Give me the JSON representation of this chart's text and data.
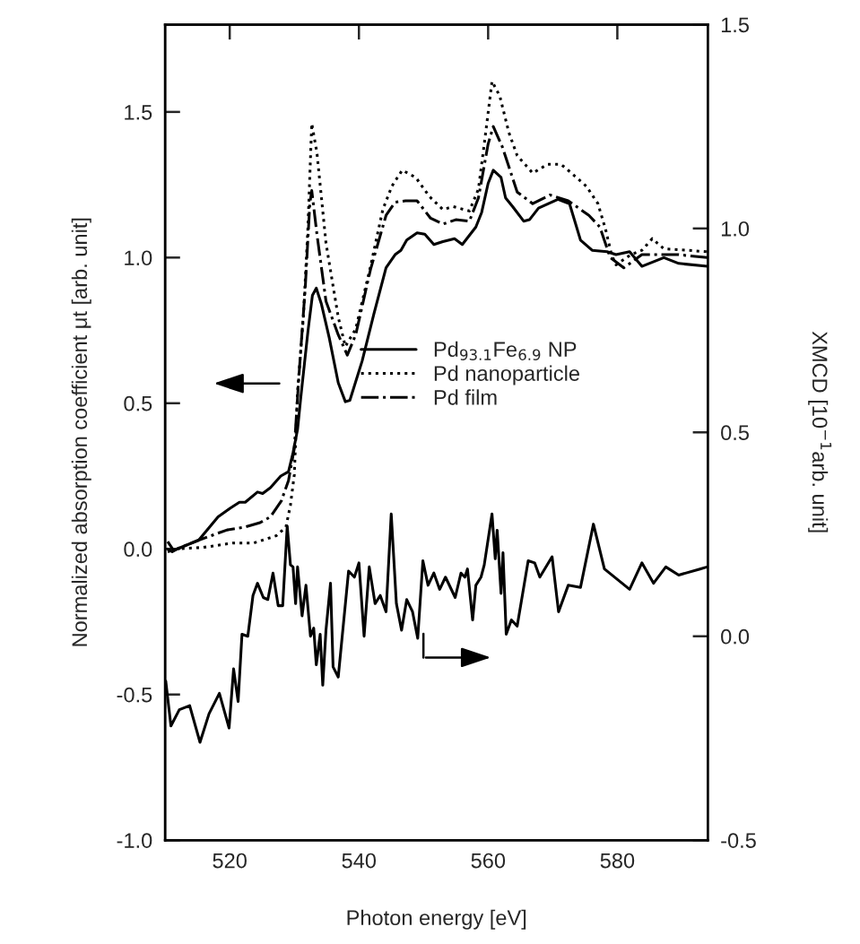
{
  "chart_data": {
    "type": "line",
    "xlabel": "Photon energy [eV]",
    "ylabel": "Normalized absorption coefficient μt [arb. unit]",
    "y2label": "XMCD [10$^{−1}$arb. unit]",
    "xlim": [
      510,
      594
    ],
    "xticks": [
      520,
      540,
      560,
      580
    ],
    "ylim": [
      -1.0,
      1.8
    ],
    "yticks": [
      {
        "value": -1.0,
        "label": "-1.0"
      },
      {
        "value": -0.5,
        "label": "-0.5"
      },
      {
        "value": 0.0,
        "label": "0.0"
      },
      {
        "value": 0.5,
        "label": "0.5"
      },
      {
        "value": 1.0,
        "label": "1.0"
      },
      {
        "value": 1.5,
        "label": "1.5"
      }
    ],
    "y2lim": [
      -0.5,
      1.5
    ],
    "y2ticks": [
      {
        "value": -0.5,
        "label": "-0.5"
      },
      {
        "value": 0.0,
        "label": "0.0"
      },
      {
        "value": 0.5,
        "label": "0.5"
      },
      {
        "value": 1.0,
        "label": "1.0"
      },
      {
        "value": 1.5,
        "label": "1.5"
      }
    ],
    "grid": false,
    "legend": "center right",
    "marker": "none",
    "series": [
      {
        "name": "Pd$_{93.1}$Fe$_{6.9}$ NP",
        "color": "#000000",
        "line_style": "solid",
        "x": [
          510.4,
          511.1,
          511.9,
          515.2,
          518.2,
          520.1,
          521.5,
          522.4,
          524.3,
          525.1,
          526.3,
          527.9,
          529.1,
          529.8,
          530.5,
          531.0,
          532.1,
          532.8,
          533.4,
          534.2,
          535.4,
          536.8,
          537.9,
          538.6,
          540.5,
          542.3,
          544.2,
          545.6,
          546.5,
          547.4,
          549.0,
          550.2,
          551.6,
          553.0,
          554.8,
          556.0,
          556.7,
          558.1,
          559.0,
          560.0,
          560.8,
          562.0,
          562.7,
          563.8,
          565.5,
          566.4,
          567.8,
          570.8,
          572.6,
          574.3,
          576.1,
          578.4,
          579.8,
          581.9,
          583.8,
          587.2,
          589.5,
          593.9
        ],
        "values": [
          0.0,
          -0.01,
          0.0,
          0.03,
          0.11,
          0.14,
          0.16,
          0.16,
          0.195,
          0.19,
          0.21,
          0.25,
          0.265,
          0.33,
          0.41,
          0.52,
          0.745,
          0.87,
          0.895,
          0.84,
          0.725,
          0.57,
          0.505,
          0.51,
          0.645,
          0.805,
          0.965,
          1.01,
          1.025,
          1.06,
          1.085,
          1.08,
          1.045,
          1.055,
          1.065,
          1.045,
          1.065,
          1.105,
          1.155,
          1.255,
          1.3,
          1.275,
          1.205,
          1.175,
          1.125,
          1.13,
          1.17,
          1.2,
          1.185,
          1.06,
          1.025,
          1.02,
          1.01,
          1.02,
          0.97,
          1.0,
          0.98,
          0.97
        ]
      },
      {
        "name": "Pd nanoparticle",
        "color": "#000000",
        "line_style": "dotted",
        "x": [
          510.4,
          511.9,
          515.9,
          520.5,
          523.7,
          525.8,
          527.2,
          528.7,
          529.4,
          530.0,
          530.5,
          531.4,
          532.1,
          532.7,
          533.5,
          534.9,
          536.8,
          537.9,
          539.5,
          541.8,
          543.7,
          545.1,
          546.7,
          548.8,
          550.9,
          553.0,
          554.6,
          557.1,
          558.5,
          559.4,
          560.6,
          561.8,
          563.2,
          564.5,
          566.9,
          569.2,
          571.3,
          572.9,
          575.2,
          577.0,
          578.2,
          579.1,
          579.8,
          582.1,
          583.8,
          585.4,
          587.2,
          590.9,
          593.9
        ],
        "values": [
          -0.01,
          0.0,
          0.005,
          0.02,
          0.02,
          0.035,
          0.045,
          0.075,
          0.15,
          0.255,
          0.54,
          0.795,
          1.1,
          1.46,
          1.36,
          1.05,
          0.795,
          0.695,
          0.755,
          0.97,
          1.165,
          1.245,
          1.3,
          1.275,
          1.21,
          1.165,
          1.175,
          1.16,
          1.235,
          1.39,
          1.605,
          1.555,
          1.43,
          1.35,
          1.29,
          1.32,
          1.32,
          1.29,
          1.245,
          1.185,
          1.095,
          1.01,
          0.975,
          1.01,
          1.025,
          1.065,
          1.03,
          1.025,
          1.02
        ]
      },
      {
        "name": "Pd film",
        "color": "#000000",
        "line_style": "dashdot",
        "x": [
          510.4,
          511.3,
          515.2,
          519.6,
          522.4,
          524.7,
          526.3,
          528.0,
          529.1,
          530.0,
          530.7,
          531.7,
          532.4,
          532.7,
          533.5,
          534.9,
          536.8,
          538.2,
          539.5,
          541.8,
          544.2,
          545.6,
          547.2,
          549.0,
          551.1,
          553.0,
          555.0,
          557.1,
          558.5,
          560.0,
          560.8,
          562.2,
          564.5,
          566.9,
          569.6,
          572.4,
          575.6,
          577.3,
          578.9,
          581.0,
          583.8,
          586.3,
          589.5,
          593.9
        ],
        "values": [
          0.025,
          -0.005,
          0.03,
          0.065,
          0.075,
          0.09,
          0.11,
          0.165,
          0.235,
          0.345,
          0.59,
          0.9,
          1.185,
          1.23,
          1.08,
          0.85,
          0.735,
          0.665,
          0.735,
          0.96,
          1.145,
          1.19,
          1.195,
          1.195,
          1.135,
          1.115,
          1.13,
          1.125,
          1.205,
          1.39,
          1.45,
          1.38,
          1.225,
          1.185,
          1.215,
          1.195,
          1.145,
          1.105,
          1.0,
          0.965,
          1.01,
          1.01,
          1.01,
          1.0
        ]
      },
      {
        "color": "#000000",
        "line_style": "solid",
        "axis": "y2",
        "x": [
          510.1,
          510.9,
          512.2,
          513.8,
          515.4,
          516.8,
          518.4,
          519.9,
          520.6,
          521.3,
          521.9,
          522.8,
          523.6,
          524.3,
          525.2,
          525.9,
          526.7,
          527.5,
          528.2,
          528.9,
          529.4,
          529.8,
          530.2,
          530.5,
          531.2,
          531.8,
          532.5,
          533.0,
          533.4,
          534.0,
          534.4,
          534.9,
          535.6,
          536.0,
          536.8,
          538.4,
          539.3,
          540.0,
          540.8,
          541.6,
          542.5,
          543.3,
          544.2,
          545.0,
          545.8,
          546.6,
          547.4,
          548.3,
          549.1,
          549.9,
          550.7,
          551.6,
          552.5,
          553.4,
          554.9,
          555.8,
          556.4,
          556.8,
          557.6,
          558.1,
          558.9,
          559.4,
          560.6,
          561.1,
          561.4,
          562.0,
          562.3,
          562.8,
          563.6,
          564.5,
          566.2,
          567.2,
          568.0,
          569.9,
          570.9,
          572.4,
          574.3,
          576.3,
          578.0,
          581.9,
          583.8,
          585.6,
          587.5,
          589.5,
          592.8,
          593.9
        ],
        "values": [
          -0.11,
          -0.22,
          -0.18,
          -0.17,
          -0.26,
          -0.19,
          -0.14,
          -0.225,
          -0.08,
          -0.16,
          0.005,
          0.0,
          0.1,
          0.13,
          0.095,
          0.09,
          0.155,
          0.075,
          0.075,
          0.27,
          0.175,
          0.17,
          0.08,
          0.17,
          0.05,
          0.125,
          0.0,
          0.02,
          -0.07,
          0.005,
          -0.12,
          0.015,
          0.13,
          -0.075,
          -0.1,
          0.16,
          0.145,
          0.18,
          0.0,
          0.17,
          0.08,
          0.1,
          0.06,
          0.3,
          0.08,
          0.015,
          0.09,
          0.06,
          -0.005,
          0.185,
          0.125,
          0.155,
          0.115,
          0.145,
          0.095,
          0.155,
          0.145,
          0.165,
          0.04,
          0.125,
          0.145,
          0.175,
          0.3,
          0.19,
          0.26,
          0.105,
          0.205,
          0.005,
          0.04,
          0.025,
          0.185,
          0.18,
          0.145,
          0.195,
          0.06,
          0.125,
          0.12,
          0.275,
          0.165,
          0.115,
          0.18,
          0.13,
          0.17,
          0.15,
          0.165,
          0.17
        ]
      }
    ]
  }
}
